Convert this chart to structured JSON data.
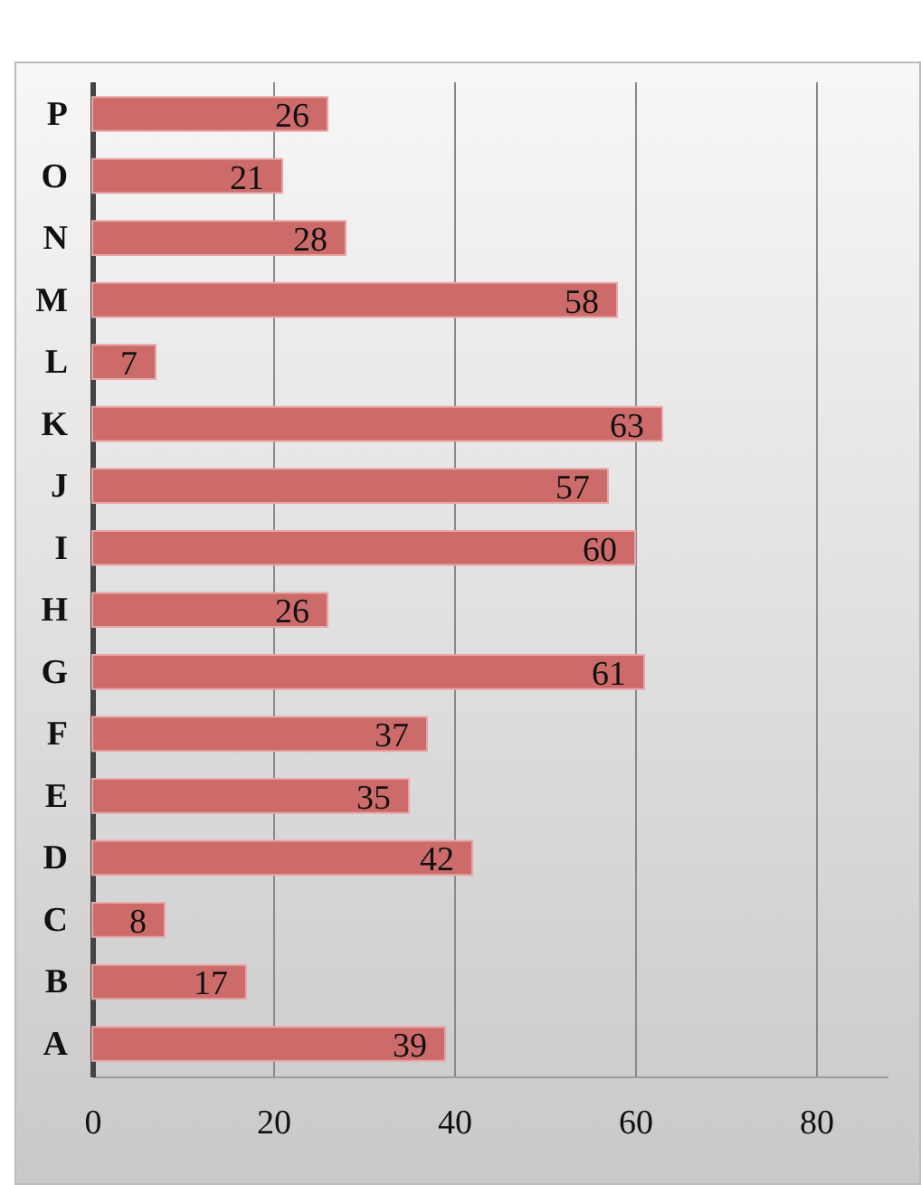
{
  "chart_data": {
    "type": "bar",
    "orientation": "horizontal",
    "categories": [
      "P",
      "O",
      "N",
      "M",
      "L",
      "K",
      "J",
      "I",
      "H",
      "G",
      "F",
      "E",
      "D",
      "C",
      "B",
      "A"
    ],
    "values": [
      26,
      21,
      28,
      58,
      7,
      63,
      57,
      60,
      26,
      61,
      37,
      35,
      42,
      8,
      17,
      39
    ],
    "color": "#cd6b6b",
    "xlim": [
      0,
      88
    ],
    "xticks": [
      0,
      20,
      40,
      60,
      80
    ],
    "grid": "x",
    "data_labels": true
  }
}
